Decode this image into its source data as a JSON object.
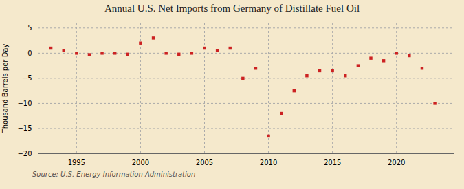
{
  "chart_data": {
    "type": "scatter",
    "title": "Annual U.S. Net Imports from Germany of Distillate Fuel Oil",
    "ylabel": "Thousand Barrels per Day",
    "annotations": [
      "Source: U.S. Energy Information Administration"
    ],
    "x": [
      1993,
      1994,
      1995,
      1996,
      1997,
      1998,
      1999,
      2000,
      2001,
      2002,
      2003,
      2004,
      2005,
      2006,
      2007,
      2008,
      2009,
      2010,
      2011,
      2012,
      2013,
      2014,
      2015,
      2016,
      2017,
      2018,
      2019,
      2020,
      2021,
      2022,
      2023
    ],
    "values": [
      1.0,
      0.5,
      0.0,
      -0.3,
      0.0,
      0.0,
      -0.2,
      2.0,
      3.0,
      0.0,
      -0.2,
      0.0,
      1.0,
      0.5,
      1.0,
      -5.0,
      -3.0,
      -16.5,
      -12.0,
      -7.5,
      -4.5,
      -3.5,
      -3.5,
      -4.5,
      -2.5,
      -1.0,
      -1.5,
      0.0,
      -0.5,
      -3.0,
      -10.0
    ],
    "color": "#cc2222",
    "marker": "square",
    "xlim": [
      1992,
      2024.5
    ],
    "ylim": [
      -20,
      6
    ],
    "xticks": [
      1995,
      2000,
      2005,
      2010,
      2015,
      2020
    ],
    "yticks": [
      -20,
      -15,
      -10,
      -5,
      0,
      5
    ],
    "grid": true
  }
}
